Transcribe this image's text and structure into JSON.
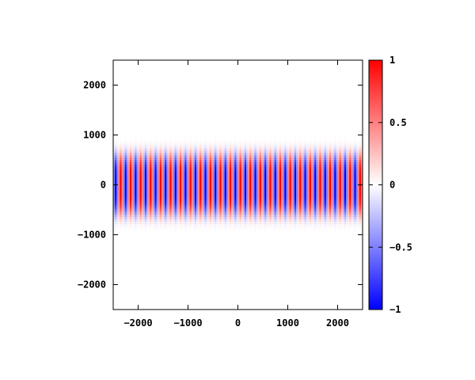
{
  "chart_data": {
    "type": "heatmap",
    "title": "",
    "xlabel": "",
    "ylabel": "",
    "xlim": [
      -2500,
      2500
    ],
    "ylim": [
      -2500,
      2500
    ],
    "x_ticks": [
      -2000,
      -1000,
      0,
      1000,
      2000
    ],
    "x_tick_labels": [
      "−2000",
      "−1000",
      "0",
      "1000",
      "2000"
    ],
    "y_ticks": [
      2000,
      1000,
      0,
      -1000,
      -2000
    ],
    "y_tick_labels": [
      "2000",
      "1000",
      "0",
      "−1000",
      "−2000"
    ],
    "colorbar": {
      "range": [
        -1,
        1
      ],
      "ticks": [
        1,
        0.5,
        0,
        -0.5,
        -1
      ],
      "tick_labels": [
        "1",
        "0.5",
        "0",
        "−0.5",
        "−1"
      ],
      "colormap": [
        "#0000ff",
        "#ffffff",
        "#ff0000"
      ]
    },
    "field": {
      "description_of_pattern": "vertical stripes oscillating in x, Gaussian envelope in y",
      "period_x": 200,
      "envelope_sigma_y": 620
    },
    "grid": false,
    "legend": "colorbar-right"
  }
}
